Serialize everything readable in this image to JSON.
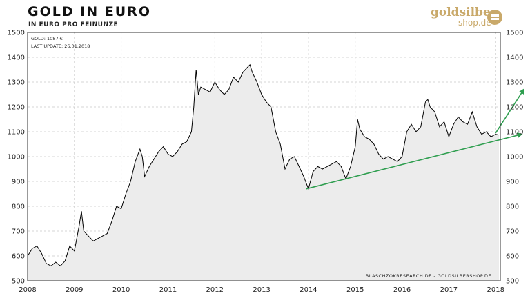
{
  "header": {
    "title": "GOLD IN EURO",
    "subtitle": "IN EURO PRO FEINUNZE"
  },
  "logo": {
    "word1": "goldsilber",
    "word2": "shop.de",
    "icon": "coin-stack-icon"
  },
  "chart_data": {
    "type": "area",
    "info_price": "GOLD: 1087 €",
    "info_update": "LAST UPDATE: 26.01.2018",
    "credit": "BLASCHZOKRESEARCH.DE - GOLDSILBERSHOP.DE",
    "ylim": [
      500,
      1500
    ],
    "xlim": [
      2008.0,
      2018.1
    ],
    "yticks": [
      500,
      600,
      700,
      800,
      900,
      1000,
      1100,
      1200,
      1300,
      1400,
      1500
    ],
    "xticks": [
      "2008",
      "2009",
      "2010",
      "2011",
      "2012",
      "2013",
      "2014",
      "2015",
      "2016",
      "2017",
      "2018"
    ],
    "grid": true,
    "colors": {
      "line": "#000000",
      "area": "#ececec",
      "trend": "#2e9e4f",
      "grid": "#c8c8c8"
    },
    "series": [
      {
        "x": [
          2008.0,
          2008.1,
          2008.2,
          2008.3,
          2008.4,
          2008.5,
          2008.6,
          2008.7,
          2008.8,
          2008.9,
          2009.0,
          2009.1,
          2009.15,
          2009.2,
          2009.3,
          2009.4,
          2009.5,
          2009.6,
          2009.7,
          2009.8,
          2009.9,
          2010.0,
          2010.1,
          2010.2,
          2010.3,
          2010.4,
          2010.45,
          2010.5,
          2010.6,
          2010.7,
          2010.8,
          2010.9,
          2011.0,
          2011.1,
          2011.2,
          2011.3,
          2011.4,
          2011.5,
          2011.55,
          2011.6,
          2011.65,
          2011.7,
          2011.8,
          2011.9,
          2012.0,
          2012.1,
          2012.2,
          2012.3,
          2012.4,
          2012.5,
          2012.6,
          2012.7,
          2012.75,
          2012.8,
          2012.9,
          2013.0,
          2013.1,
          2013.2,
          2013.3,
          2013.4,
          2013.5,
          2013.6,
          2013.7,
          2013.8,
          2013.9,
          2014.0,
          2014.1,
          2014.2,
          2014.3,
          2014.4,
          2014.5,
          2014.6,
          2014.7,
          2014.8,
          2014.9,
          2015.0,
          2015.05,
          2015.1,
          2015.2,
          2015.3,
          2015.4,
          2015.5,
          2015.6,
          2015.7,
          2015.8,
          2015.9,
          2016.0,
          2016.1,
          2016.2,
          2016.3,
          2016.4,
          2016.5,
          2016.55,
          2016.6,
          2016.7,
          2016.8,
          2016.9,
          2017.0,
          2017.1,
          2017.2,
          2017.3,
          2017.4,
          2017.5,
          2017.6,
          2017.7,
          2017.8,
          2017.9,
          2018.0,
          2018.07
        ],
        "y": [
          600,
          630,
          640,
          610,
          570,
          560,
          575,
          560,
          580,
          640,
          620,
          720,
          780,
          700,
          680,
          660,
          670,
          680,
          690,
          740,
          800,
          790,
          850,
          900,
          980,
          1030,
          1000,
          920,
          960,
          990,
          1020,
          1040,
          1010,
          1000,
          1020,
          1050,
          1060,
          1100,
          1200,
          1350,
          1250,
          1280,
          1270,
          1260,
          1300,
          1270,
          1250,
          1270,
          1320,
          1300,
          1340,
          1360,
          1370,
          1340,
          1300,
          1250,
          1220,
          1200,
          1100,
          1050,
          950,
          990,
          1000,
          960,
          920,
          870,
          940,
          960,
          950,
          960,
          970,
          980,
          960,
          910,
          960,
          1040,
          1150,
          1110,
          1080,
          1070,
          1050,
          1010,
          990,
          1000,
          990,
          980,
          1000,
          1100,
          1130,
          1100,
          1120,
          1220,
          1230,
          1200,
          1180,
          1120,
          1140,
          1080,
          1130,
          1160,
          1140,
          1130,
          1180,
          1120,
          1090,
          1100,
          1080,
          1090,
          1087
        ]
      }
    ],
    "trend_lines": [
      {
        "x": [
          2013.95,
          2018.55
        ],
        "y": [
          870,
          1090
        ]
      },
      {
        "x": [
          2018.0,
          2018.6
        ],
        "y": [
          1095,
          1270
        ]
      }
    ]
  }
}
